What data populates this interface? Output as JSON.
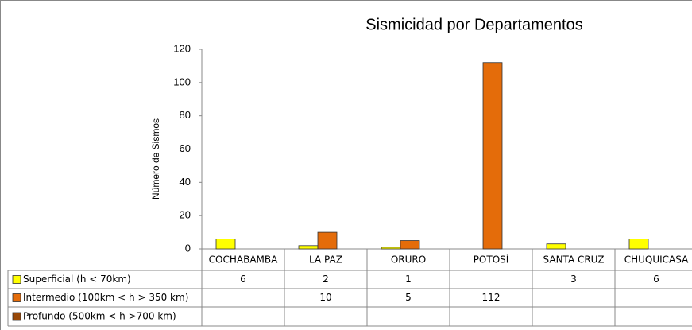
{
  "chart_data": {
    "type": "bar",
    "title": "Sismicidad por Departamentos",
    "y_label": "Número de Sismos",
    "categories": [
      "COCHABAMBA",
      "LA PAZ",
      "ORURO",
      "POTOSÍ",
      "SANTA CRUZ",
      "CHUQUICASA"
    ],
    "series": [
      {
        "name": "Superficial (h < 70km)",
        "color": "#ffff00",
        "values": [
          6,
          2,
          1,
          null,
          3,
          6
        ]
      },
      {
        "name": "Intermedio (100km < h > 350 km)",
        "color": "#e46c0a",
        "values": [
          null,
          10,
          5,
          112,
          null,
          null
        ]
      },
      {
        "name": "Profundo (500km < h >700 km)",
        "color": "#984807",
        "values": [
          null,
          null,
          null,
          null,
          null,
          null
        ]
      }
    ],
    "ylim": [
      0,
      120
    ],
    "yticks": [
      0,
      20,
      40,
      60,
      80,
      100,
      120
    ]
  }
}
